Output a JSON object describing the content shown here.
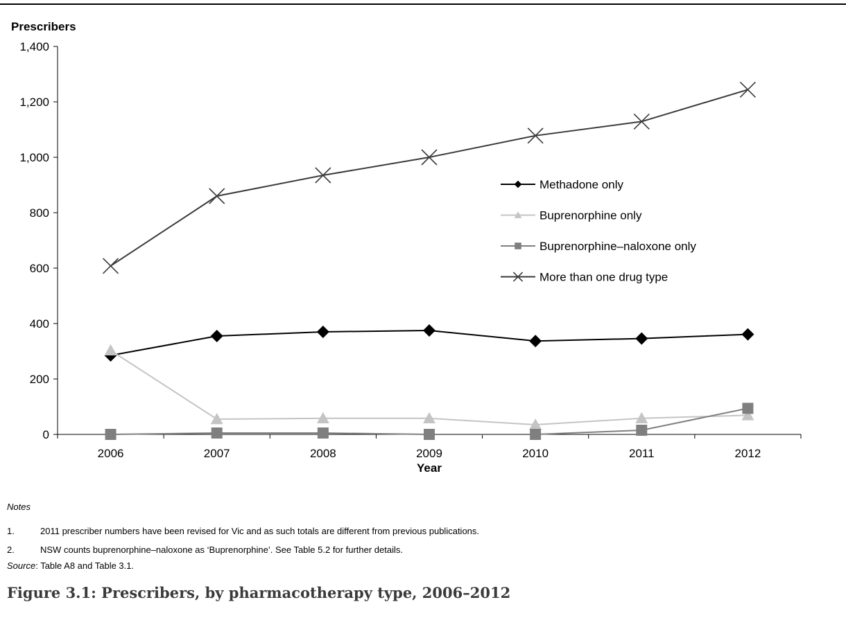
{
  "chart_data": {
    "type": "line",
    "y_axis_title": "Prescribers",
    "x_axis_title": "Year",
    "categories": [
      "2006",
      "2007",
      "2008",
      "2009",
      "2010",
      "2011",
      "2012"
    ],
    "ylim": [
      0,
      1400
    ],
    "y_ticks": [
      0,
      200,
      400,
      600,
      800,
      1000,
      1200,
      1400
    ],
    "y_tick_labels": [
      "0",
      "200",
      "400",
      "600",
      "800",
      "1,000",
      "1,200",
      "1,400"
    ],
    "grid": false,
    "legend_position": "center-right",
    "series": [
      {
        "name": "Methadone only",
        "marker": "diamond",
        "color": "#000000",
        "values": [
          285,
          355,
          370,
          375,
          337,
          346,
          361
        ]
      },
      {
        "name": "Buprenorphine only",
        "marker": "triangle",
        "color": "#c4c4c4",
        "values": [
          303,
          55,
          58,
          58,
          35,
          58,
          69
        ]
      },
      {
        "name": "Buprenorphine–naloxone only",
        "marker": "square",
        "color": "#7f7f7f",
        "values": [
          0,
          5,
          5,
          0,
          0,
          15,
          94
        ]
      },
      {
        "name": "More than one drug type",
        "marker": "x",
        "color": "#3a3a3a",
        "values": [
          608,
          860,
          935,
          1000,
          1078,
          1129,
          1244
        ]
      }
    ]
  },
  "notes": {
    "heading": "Notes",
    "items": [
      {
        "number": "1.",
        "text": "2011 prescriber numbers have been revised for Vic and as such totals are different from previous publications."
      },
      {
        "number": "2.",
        "text": "NSW counts buprenorphine–naloxone as ‘Buprenorphine’. See Table 5.2 for further details."
      }
    ]
  },
  "source": {
    "label": "Source",
    "text": ": Table A8 and Table 3.1."
  },
  "figure_title": "Figure 3.1: Prescribers, by pharmacotherapy type, 2006–2012"
}
